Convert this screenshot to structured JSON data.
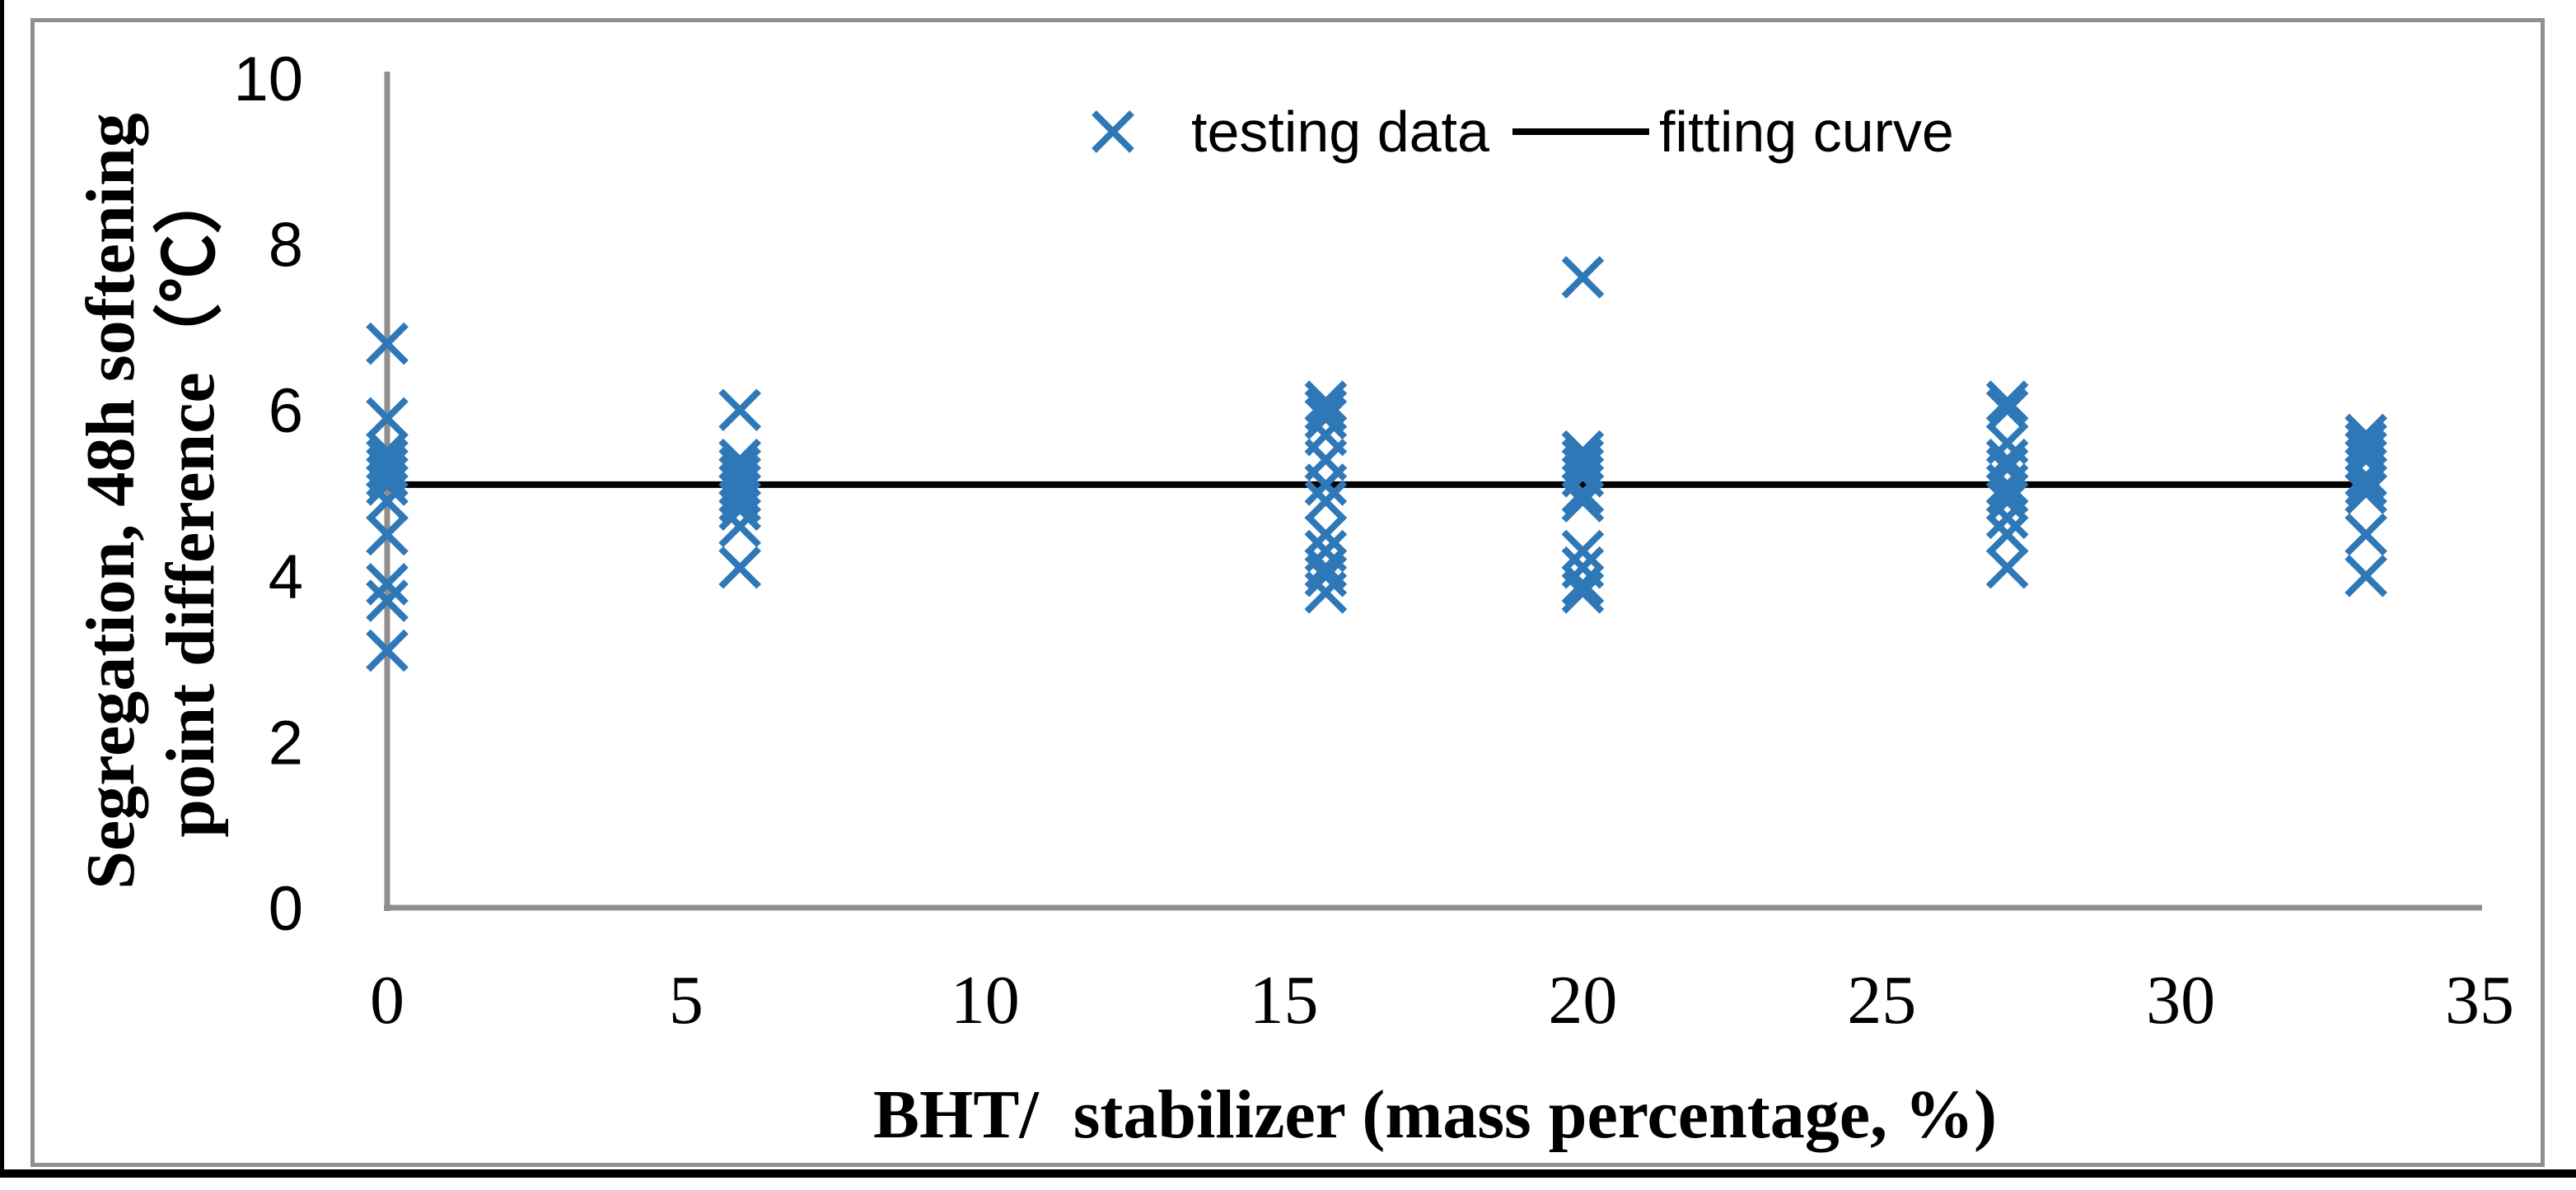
{
  "figure": {
    "background": "#ffffff",
    "frame_border_color": "#8f8f8f",
    "axis_line_color": "#8f8f8f"
  },
  "chart_data": {
    "type": "scatter",
    "title": "",
    "xlabel": "BHT/  stabilizer (mass percentage, %)",
    "ylabel": "Segregation, 48h softening point difference（℃）",
    "ylabel_lines": [
      "Segregation, 48h softening",
      "point difference（℃）"
    ],
    "xlim": [
      0,
      35
    ],
    "ylim": [
      0,
      10
    ],
    "xticks": [
      0,
      5,
      10,
      15,
      20,
      25,
      30,
      35
    ],
    "yticks": [
      0,
      2,
      4,
      6,
      8,
      10
    ],
    "grid": false,
    "legend_position": "top-center",
    "series": [
      {
        "name": "testing data",
        "type": "scatter",
        "marker": "x",
        "color": "#2E78B7",
        "clusters": [
          {
            "x": 0,
            "y": [
              6.8,
              5.9,
              5.5,
              5.4,
              5.3,
              5.2,
              5.1,
              4.9,
              4.5,
              3.9,
              3.7,
              3.1
            ]
          },
          {
            "x": 5.9,
            "y": [
              6.0,
              5.4,
              5.3,
              5.2,
              5.1,
              5.0,
              4.9,
              4.8,
              4.6,
              4.1
            ]
          },
          {
            "x": 15.7,
            "y": [
              6.1,
              6.0,
              5.9,
              5.7,
              5.4,
              5.1,
              4.9,
              4.5,
              4.3,
              4.1,
              4.0,
              3.8
            ]
          },
          {
            "x": 20,
            "y": [
              7.6,
              5.5,
              5.4,
              5.3,
              5.2,
              5.0,
              4.9,
              4.3,
              4.1,
              3.9,
              3.8
            ]
          },
          {
            "x": 27.1,
            "y": [
              6.1,
              6.0,
              5.6,
              5.4,
              5.3,
              5.1,
              5.0,
              4.9,
              4.7,
              4.5,
              4.1
            ]
          },
          {
            "x": 33.1,
            "y": [
              5.7,
              5.6,
              5.5,
              5.4,
              5.2,
              5.1,
              5.0,
              4.5,
              4.0
            ]
          }
        ]
      },
      {
        "name": "fitting curve",
        "type": "line",
        "color": "#000000",
        "y_value": 5.1,
        "x_start": 0,
        "x_end": 33.1
      }
    ]
  }
}
